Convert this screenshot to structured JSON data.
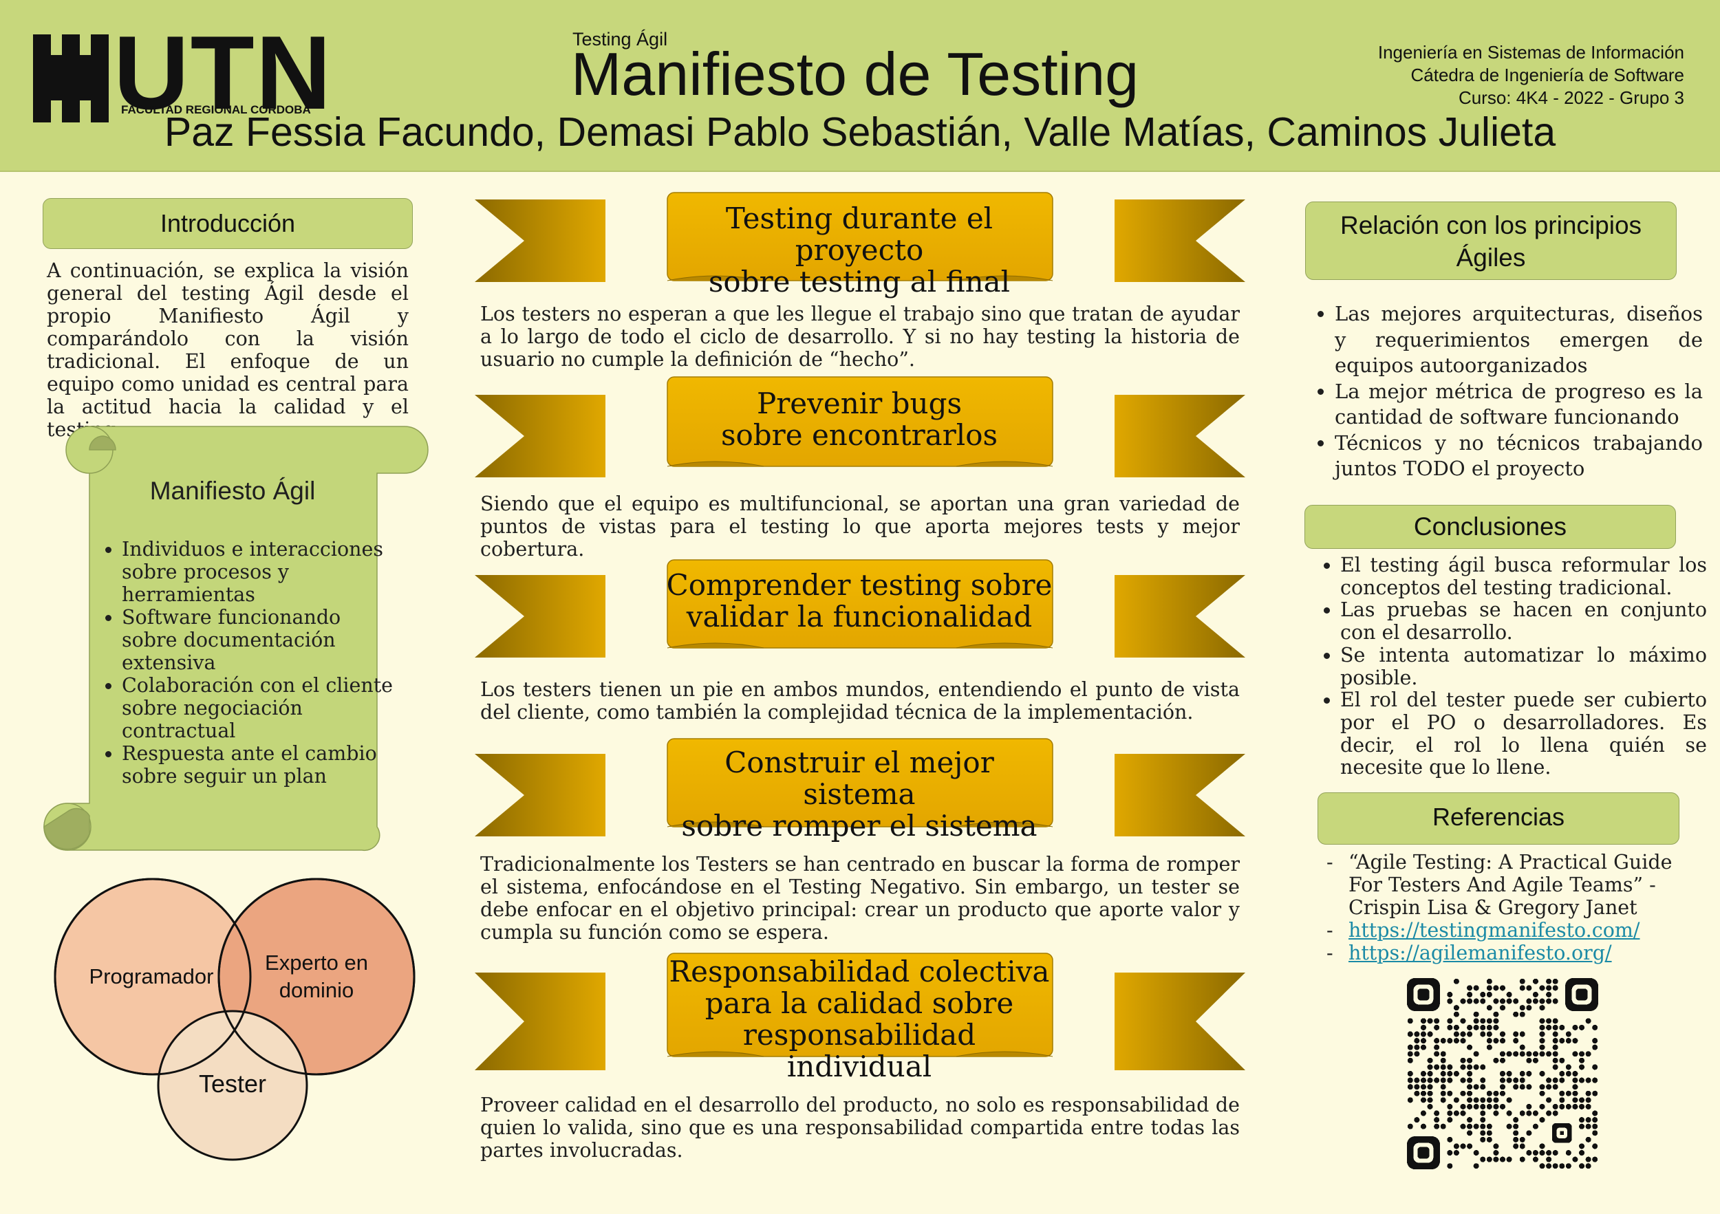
{
  "header": {
    "logo_text": "UTN",
    "logo_subtitle": "FACULTAD REGIONAL CÓRDOBA",
    "subject": "Testing Ágil",
    "title": "Manifiesto de Testing",
    "authors": "Paz Fessia Facundo, Demasi Pablo Sebastián, Valle Matías, Caminos Julieta",
    "institution": [
      "Ingeniería en Sistemas de Información",
      "Cátedra de Ingeniería de Software",
      "Curso: 4K4 - 2022 - Grupo 3"
    ]
  },
  "intro": {
    "heading": "Introducción",
    "text": "A continuación, se explica la visión general del testing Ágil desde el propio Manifiesto Ágil y comparándolo con la visión tradicional. El enfoque de un equipo como unidad es central para la actitud hacia la calidad y el testing."
  },
  "agile_manifesto": {
    "title": "Manifiesto Ágil",
    "items": [
      "Individuos e interacciones sobre procesos y herramientas",
      "Software funcionando sobre documentación extensiva",
      "Colaboración con el cliente sobre negociación contractual",
      "Respuesta ante el cambio sobre seguir un plan"
    ]
  },
  "venn": {
    "left": "Programador",
    "right_line1": "Experto en",
    "right_line2": "dominio",
    "bottom": "Tester",
    "colors": {
      "left": "#f5c6a4",
      "right": "#eba580",
      "bottom": "#f4ddc2",
      "overlap": "#e08c6c"
    }
  },
  "banners": [
    {
      "line1": "Testing durante el proyecto",
      "line2": "sobre testing al final",
      "line3": "",
      "desc": "Los testers no esperan a que les llegue el trabajo sino que tratan de ayudar a lo largo de todo el ciclo de desarrollo. Y si no hay testing la historia de usuario no cumple la definición de “hecho”."
    },
    {
      "line1": "Prevenir bugs",
      "line2": "sobre encontrarlos",
      "line3": "",
      "desc": "Siendo que el equipo es multifuncional, se aportan una gran variedad de puntos de vistas para el testing lo que aporta mejores tests y mejor cobertura."
    },
    {
      "line1": "Comprender testing sobre",
      "line2": "validar la funcionalidad",
      "line3": "",
      "desc": "Los testers tienen un pie en ambos mundos, entendiendo el punto de vista del cliente, como también la complejidad técnica de la implementación."
    },
    {
      "line1": "Construir el mejor sistema",
      "line2": "sobre romper el sistema",
      "line3": "",
      "desc": "Tradicionalmente los Testers se han centrado en buscar la forma de romper el sistema, enfocándose en el Testing Negativo. Sin embargo, un tester se debe enfocar en el objetivo principal: crear un producto que aporte valor y cumpla su función como se espera."
    },
    {
      "line1": "Responsabilidad colectiva",
      "line2": "para la calidad sobre",
      "line3": "responsabilidad individual",
      "desc": "Proveer calidad en el desarrollo del producto, no solo es responsabilidad de quien lo valida, sino que es una responsabilidad compartida entre todas las partes involucradas."
    }
  ],
  "agile_principles": {
    "heading_line1": "Relación con los principios",
    "heading_line2": "Ágiles",
    "items": [
      "Las mejores arquitecturas, diseños y requerimientos emergen de equipos autoorganizados",
      "La mejor métrica de progreso es la cantidad de software funcionando",
      "Técnicos y no técnicos trabajando juntos TODO el proyecto"
    ]
  },
  "conclusions": {
    "heading": "Conclusiones",
    "items": [
      "El testing ágil busca reformular los conceptos del testing tradicional.",
      "Las pruebas se hacen en conjunto con el desarrollo.",
      "Se intenta automatizar lo máximo posible.",
      "El rol del tester puede ser cubierto por el PO o desarrolladores. Es decir, el rol lo llena quién se necesite que lo llene."
    ]
  },
  "references": {
    "heading": "Referencias",
    "book": "“Agile Testing: A Practical Guide For Testers And Agile Teams” - Crispin Lisa & Gregory Janet",
    "links": [
      "https://testingmanifesto.com/",
      "https://agilemanifesto.org/"
    ]
  },
  "colors": {
    "header_bg": "#c7d77c",
    "page_bg": "#fdfae0",
    "banner_gold": "#e0a800",
    "banner_dark": "#8c6a00",
    "link": "#1b8aa6"
  }
}
